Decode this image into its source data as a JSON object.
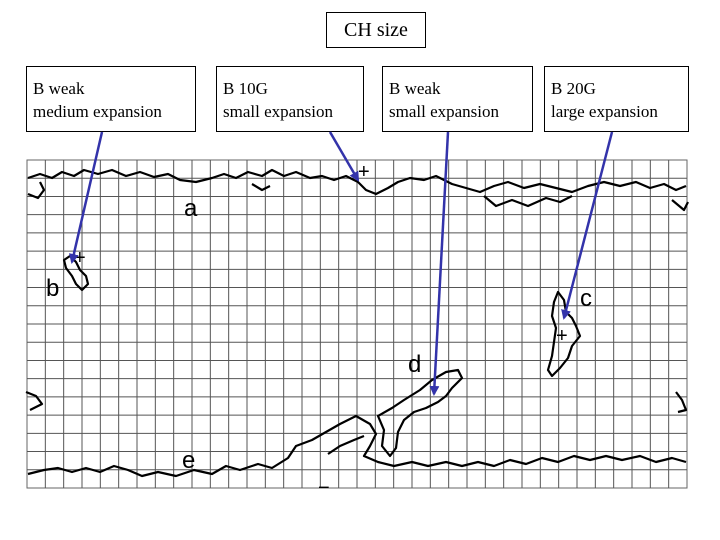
{
  "title": "CH size",
  "notes": [
    {
      "line1": "B weak",
      "line2": "medium expansion"
    },
    {
      "line1": "B 10G",
      "line2": "small expansion"
    },
    {
      "line1": "B weak",
      "line2": "small expansion"
    },
    {
      "line1": "B 20G",
      "line2": "large expansion"
    }
  ],
  "map_labels": {
    "a": "a",
    "b": "b",
    "c": "c",
    "d": "d",
    "e": "e"
  },
  "polarity": {
    "plus": "+",
    "minus": "−"
  },
  "colors": {
    "arrow": "#3333aa",
    "grid": "#555555",
    "outline": "#000000"
  }
}
